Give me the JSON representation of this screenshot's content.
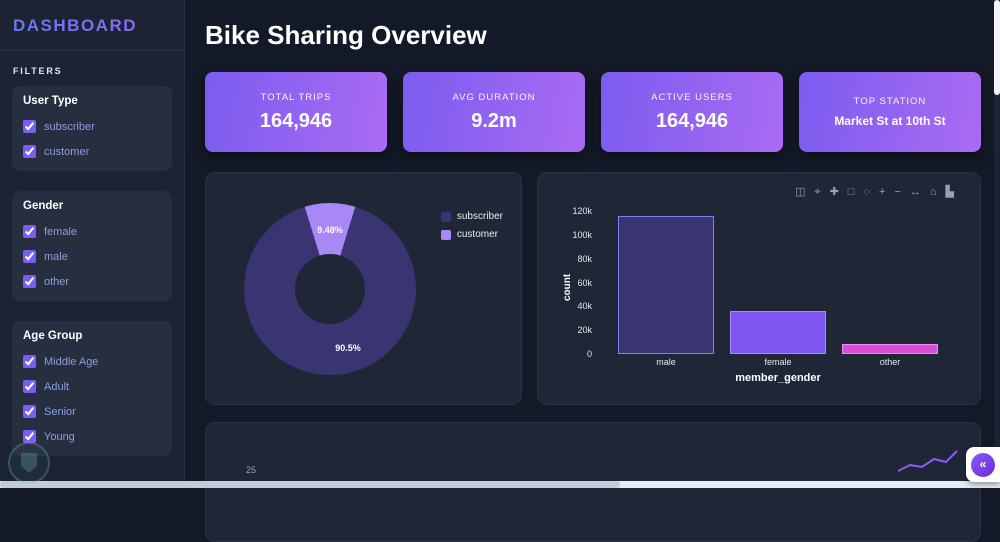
{
  "sidebar": {
    "title": "DASHBOARD",
    "filters_label": "FILTERS",
    "groups": [
      {
        "title": "User Type",
        "options": [
          {
            "label": "subscriber",
            "checked": true
          },
          {
            "label": "customer",
            "checked": true
          }
        ]
      },
      {
        "title": "Gender",
        "options": [
          {
            "label": "female",
            "checked": true
          },
          {
            "label": "male",
            "checked": true
          },
          {
            "label": "other",
            "checked": true
          }
        ]
      },
      {
        "title": "Age Group",
        "options": [
          {
            "label": "Middle Age",
            "checked": true
          },
          {
            "label": "Adult",
            "checked": true
          },
          {
            "label": "Senior",
            "checked": true
          },
          {
            "label": "Young",
            "checked": true
          }
        ]
      }
    ]
  },
  "header": {
    "title": "Bike Sharing Overview"
  },
  "kpis": [
    {
      "label": "TOTAL TRIPS",
      "value": "164,946"
    },
    {
      "label": "AVG DURATION",
      "value": "9.2m"
    },
    {
      "label": "ACTIVE USERS",
      "value": "164,946"
    },
    {
      "label": "TOP STATION",
      "value": "Market St at 10th St"
    }
  ],
  "chart_data": [
    {
      "type": "pie",
      "labels": [
        "subscriber",
        "customer"
      ],
      "values": [
        90.5,
        9.48
      ],
      "data_labels": [
        "90.5%",
        "9.48%"
      ],
      "colors": [
        "#3a3472",
        "#a788f5"
      ],
      "hole": 0.42,
      "legend_position": "right"
    },
    {
      "type": "bar",
      "categories": [
        "male",
        "female",
        "other"
      ],
      "values": [
        116000,
        36000,
        8000
      ],
      "bar_colors": [
        "#3a3472",
        "#7e55f0",
        "#d74fd4"
      ],
      "bar_borders": [
        "#8a7bf0",
        "#a78bfa",
        "#f08bf0"
      ],
      "xlabel": "member_gender",
      "ylabel": "count",
      "ylim": [
        0,
        120000
      ],
      "yticks": [
        "0",
        "20k",
        "40k",
        "60k",
        "80k",
        "100k",
        "120k"
      ],
      "grid": false
    }
  ],
  "modebar": {
    "icons": [
      {
        "name": "camera-icon",
        "glyph": "◫"
      },
      {
        "name": "zoom-icon",
        "glyph": "⌖"
      },
      {
        "name": "pan-icon",
        "glyph": "✚"
      },
      {
        "name": "box-select-icon",
        "glyph": "□"
      },
      {
        "name": "lasso-icon",
        "glyph": "◌"
      },
      {
        "name": "zoom-in-icon",
        "glyph": "+"
      },
      {
        "name": "zoom-out-icon",
        "glyph": "−"
      },
      {
        "name": "autoscale-icon",
        "glyph": "↔"
      },
      {
        "name": "reset-axes-icon",
        "glyph": "⌂"
      },
      {
        "name": "plotly-logo-icon",
        "glyph": "▙"
      }
    ]
  },
  "bottom_chart": {
    "visible_tick": "25"
  },
  "collapse_button": {
    "glyph": "«"
  },
  "colors": {
    "accent": "#7c5cf6",
    "kpi_gradient_start": "#7b5cf0",
    "kpi_gradient_end": "#aa6bf2"
  }
}
